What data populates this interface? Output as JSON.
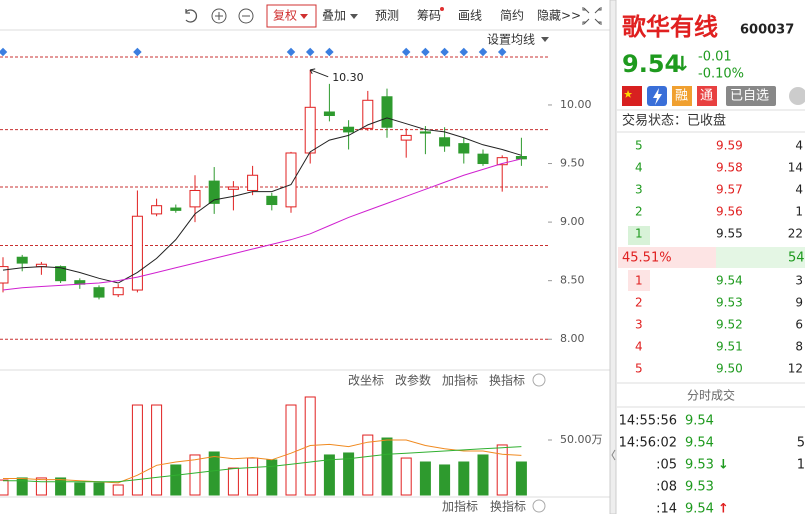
{
  "toolbar": {
    "buttons": [
      "复权",
      "叠加",
      "预测",
      "筹码",
      "画线",
      "简约",
      "隐藏>>"
    ],
    "ma_setting": "设置均线"
  },
  "chart_data": [
    {
      "type": "candlestick",
      "up_color": "#e02020",
      "down_color": "#2e9a2e",
      "open": [
        8.48,
        8.7,
        8.62,
        8.62,
        8.5,
        8.44,
        8.38,
        8.42,
        9.07,
        9.12,
        9.13,
        9.35,
        9.28,
        9.27,
        9.22,
        9.13,
        9.59,
        9.94,
        9.81,
        9.8,
        10.07,
        9.7,
        9.77,
        9.72,
        9.67,
        9.58,
        9.49,
        9.56
      ],
      "high": [
        8.7,
        8.72,
        8.66,
        8.63,
        8.52,
        8.46,
        8.47,
        9.27,
        9.2,
        9.15,
        9.4,
        9.47,
        9.35,
        9.48,
        9.25,
        9.6,
        10.3,
        10.18,
        9.87,
        10.12,
        10.14,
        9.8,
        9.82,
        9.81,
        9.72,
        9.62,
        9.57,
        9.72
      ],
      "low": [
        8.4,
        8.58,
        8.55,
        8.48,
        8.43,
        8.34,
        8.36,
        8.4,
        9.05,
        9.08,
        9.0,
        9.07,
        9.1,
        9.23,
        9.1,
        9.08,
        9.5,
        9.86,
        9.62,
        9.78,
        9.72,
        9.55,
        9.58,
        9.6,
        9.5,
        9.48,
        9.26,
        9.48
      ],
      "close": [
        8.62,
        8.65,
        8.64,
        8.5,
        8.47,
        8.36,
        8.44,
        9.05,
        9.14,
        9.1,
        9.27,
        9.16,
        9.3,
        9.4,
        9.15,
        9.59,
        9.98,
        9.91,
        9.77,
        10.04,
        9.81,
        9.74,
        9.76,
        9.65,
        9.59,
        9.5,
        9.55,
        9.54
      ],
      "lines": [
        {
          "color": "#222222",
          "values": [
            8.59,
            8.61,
            8.62,
            8.61,
            8.57,
            8.52,
            8.48,
            8.57,
            8.69,
            8.85,
            9.07,
            9.19,
            9.22,
            9.26,
            9.26,
            9.32,
            9.6,
            9.7,
            9.74,
            9.83,
            9.89,
            9.84,
            9.79,
            9.77,
            9.72,
            9.66,
            9.62,
            9.57
          ]
        },
        {
          "color": "#d020d0",
          "values": [
            8.42,
            8.44,
            8.45,
            8.46,
            8.47,
            8.48,
            8.5,
            8.53,
            8.57,
            8.61,
            8.65,
            8.69,
            8.73,
            8.77,
            8.81,
            8.85,
            8.9,
            8.97,
            9.04,
            9.1,
            9.16,
            9.22,
            9.28,
            9.34,
            9.4,
            9.45,
            9.5,
            9.54
          ]
        }
      ],
      "ylim": [
        7.78,
        10.64
      ],
      "yticks": [
        {
          "value": 10,
          "label": "10.00"
        },
        {
          "value": 9.5,
          "label": "9.50"
        },
        {
          "value": 9,
          "label": "9.00"
        },
        {
          "value": 8.5,
          "label": "8.50"
        },
        {
          "value": 8,
          "label": "8.00"
        }
      ],
      "hlines": [
        10.41,
        9.79,
        9.3,
        8.8,
        8.0
      ],
      "hline_color": "#c83030",
      "annotation": {
        "value": 10.3,
        "label": "10.30",
        "index": 16
      }
    },
    {
      "type": "bar",
      "values": [
        13.6,
        15.5,
        15.5,
        15.5,
        10.9,
        10.9,
        9.1,
        81.8,
        81.8,
        27.3,
        36.4,
        39.1,
        24.5,
        33.6,
        31.8,
        81.8,
        89.1,
        36.4,
        38.2,
        54.5,
        51.8,
        33.6,
        30,
        27.3,
        30,
        36.4,
        45.5,
        30
      ],
      "lines": [
        {
          "color": "#f08a20",
          "values": [
            15,
            15,
            14,
            14,
            13,
            12,
            11,
            18,
            27,
            30,
            32,
            35,
            33,
            34,
            32,
            38,
            45,
            46,
            44,
            48,
            50,
            50,
            45,
            42,
            40,
            40,
            37,
            36
          ]
        },
        {
          "color": "#30b030",
          "values": [
            13,
            13,
            12,
            12,
            12,
            12,
            12,
            14,
            16,
            18,
            20,
            22,
            24,
            25,
            26,
            28,
            30,
            32,
            33,
            35,
            37,
            38,
            39,
            40,
            41,
            42,
            43,
            44
          ]
        }
      ],
      "ylim": [
        0,
        95.45
      ],
      "yticks": [
        {
          "value": 50,
          "label": "50.00万"
        }
      ],
      "buttons": [
        "改坐标",
        "改参数",
        "加指标",
        "换指标"
      ]
    }
  ],
  "bottom_bar": {
    "buttons": [
      "加指标",
      "换指标"
    ]
  },
  "quote": {
    "name": "歌华有线",
    "code": "600037",
    "price": "9.54",
    "arrow": "↓",
    "change": "-0.01",
    "change_pct": "-0.10%",
    "badges": [
      "融",
      "通",
      "已自选"
    ],
    "status": "交易状态：已收盘"
  },
  "asks": [
    {
      "level": "5",
      "price": "9.59",
      "volume": "4"
    },
    {
      "level": "4",
      "price": "9.58",
      "volume": "14"
    },
    {
      "level": "3",
      "price": "9.57",
      "volume": "4"
    },
    {
      "level": "2",
      "price": "9.56",
      "volume": "1"
    },
    {
      "level": "1",
      "price": "9.55",
      "volume": "22"
    }
  ],
  "ratio": {
    "buy": "45.51%",
    "sell": "54."
  },
  "bids": [
    {
      "level": "1",
      "price": "9.54",
      "volume": "3"
    },
    {
      "level": "2",
      "price": "9.53",
      "volume": "9"
    },
    {
      "level": "3",
      "price": "9.52",
      "volume": "6"
    },
    {
      "level": "4",
      "price": "9.51",
      "volume": "8"
    },
    {
      "level": "5",
      "price": "9.50",
      "volume": "12"
    }
  ],
  "trades": {
    "title": "分时成交",
    "rows": [
      {
        "time": "14:55:56",
        "price": "9.54"
      },
      {
        "time": "14:56:02",
        "price": "9.54",
        "volume": "5"
      },
      {
        "time": ":05",
        "price": "9.53",
        "arrow": "↓",
        "volume": "1"
      },
      {
        "time": ":08",
        "price": "9.53"
      },
      {
        "time": ":14",
        "price": "9.54",
        "arrow": "↑"
      }
    ]
  }
}
